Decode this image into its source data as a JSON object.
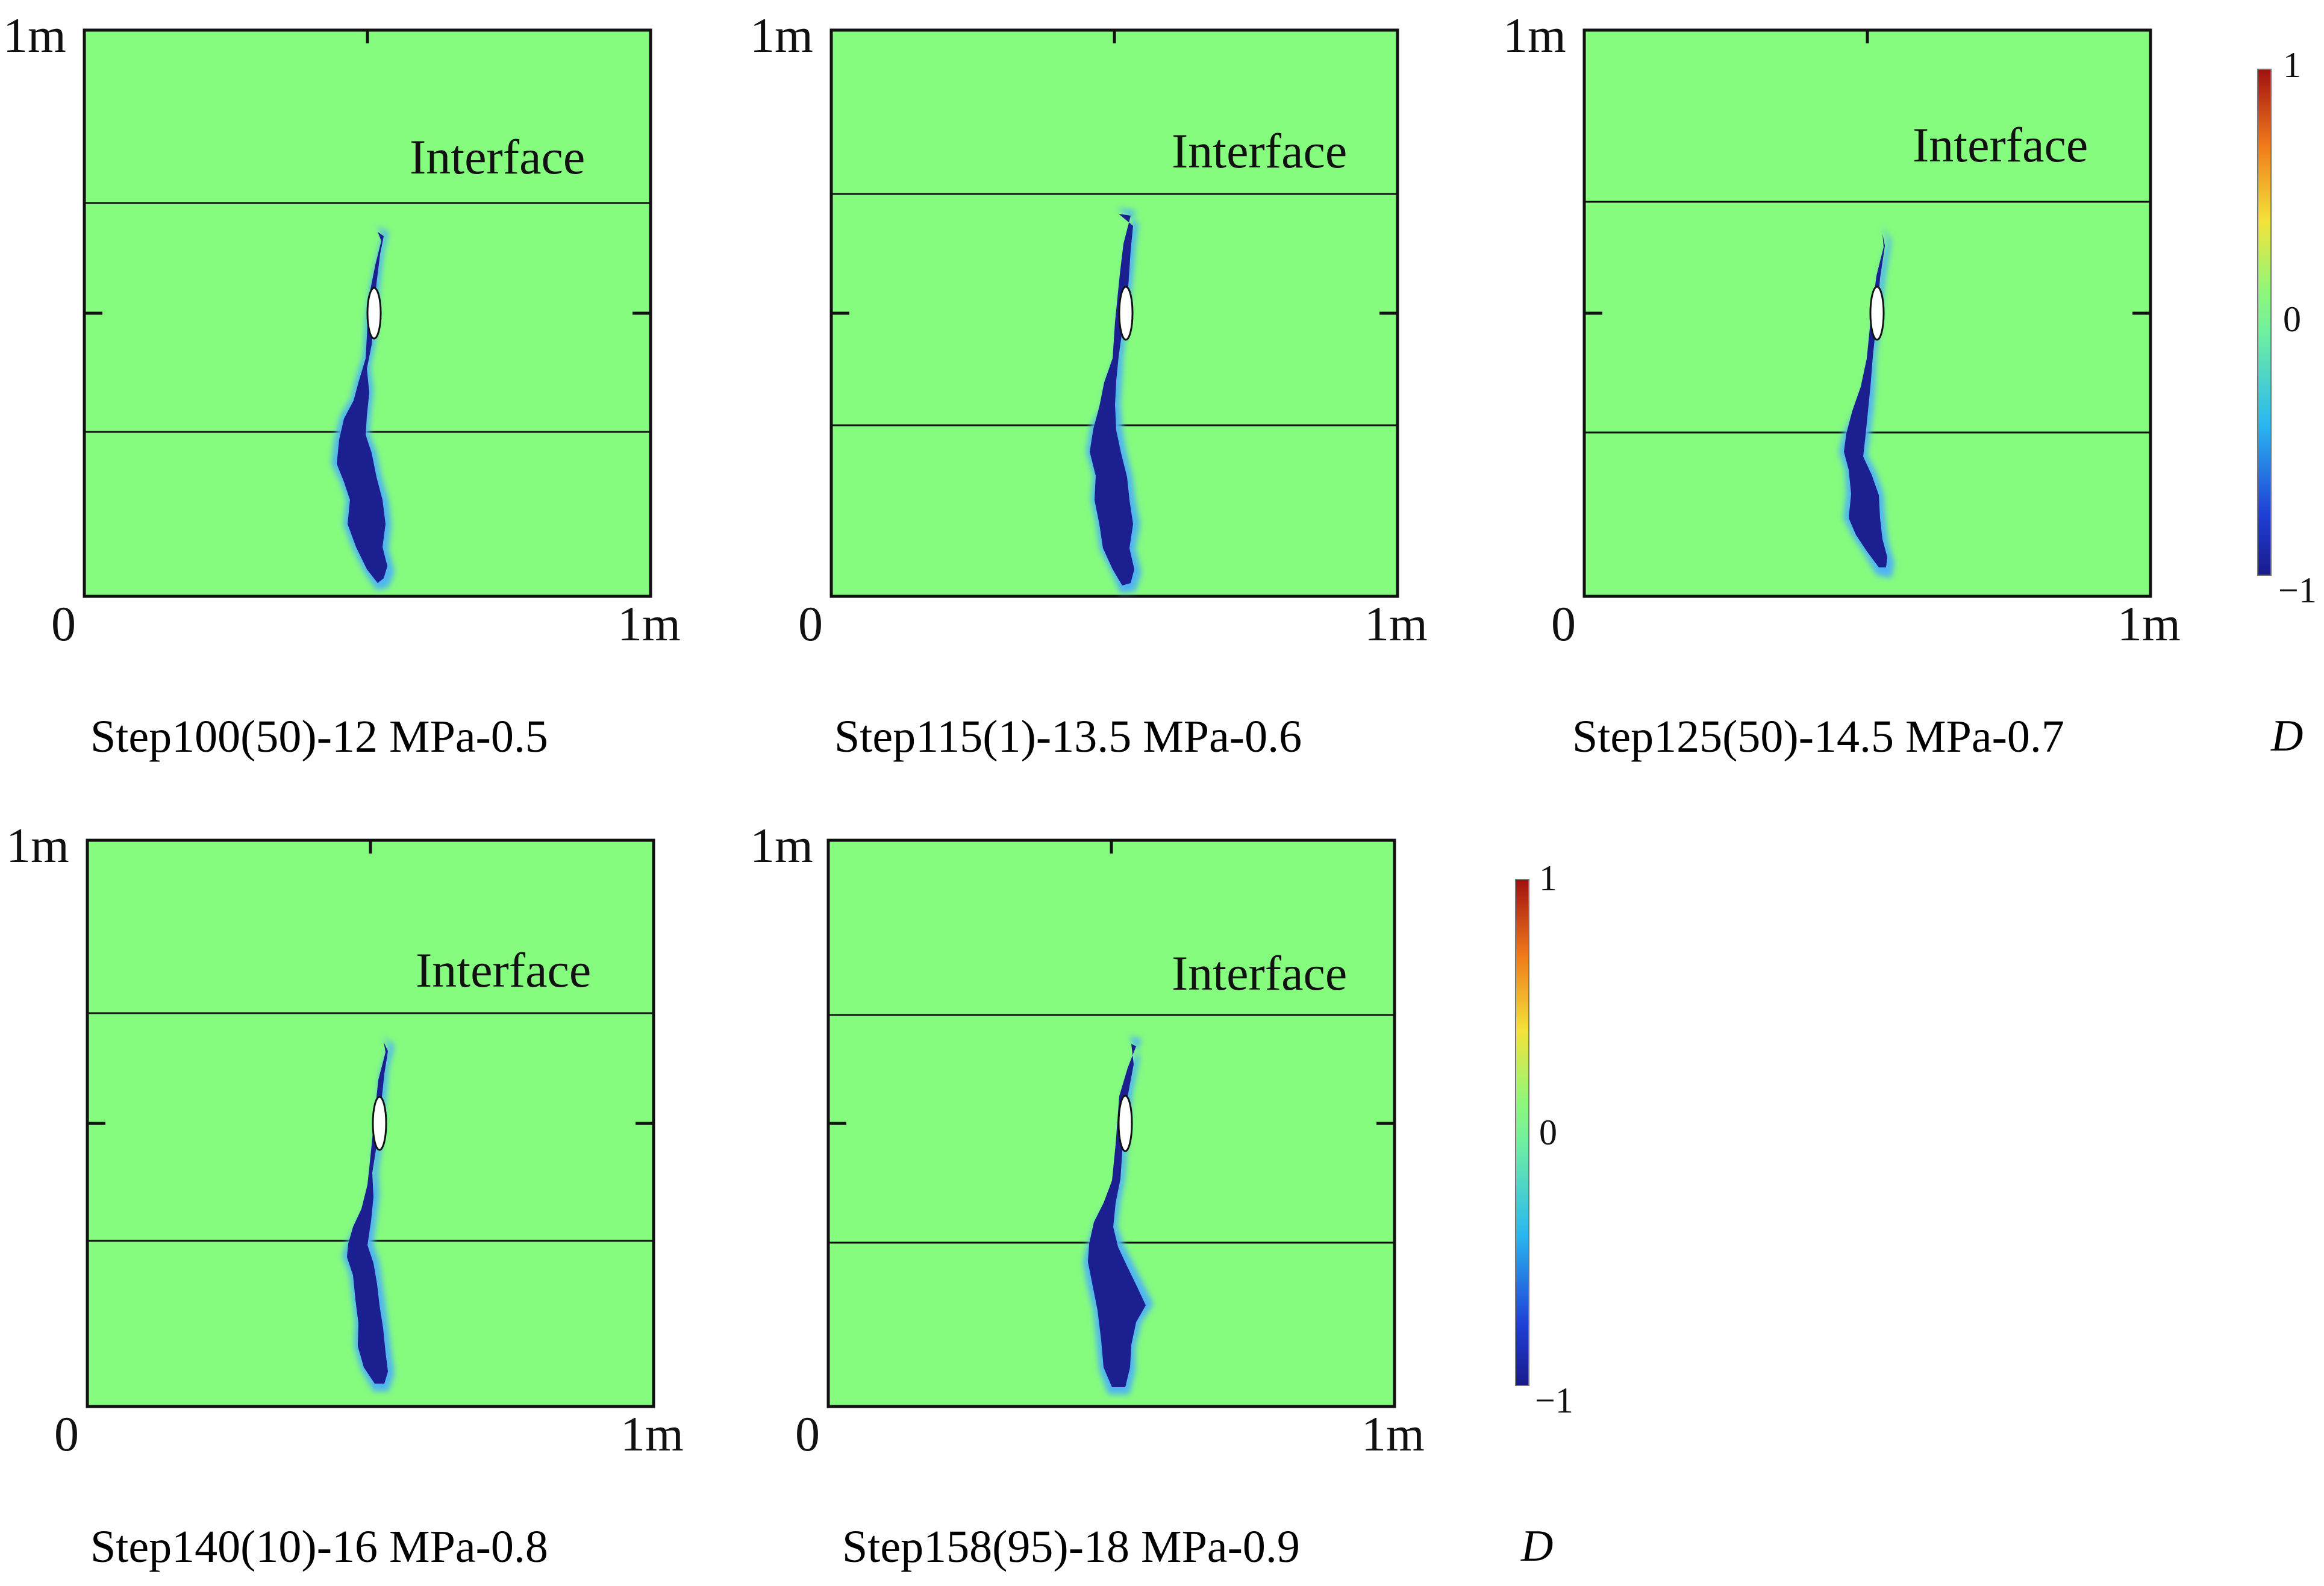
{
  "figure": {
    "axis_labels": {
      "top": "1m",
      "origin": "0",
      "right": "1m"
    },
    "interface_label": "Interface",
    "colors": {
      "background": "#86fc7e",
      "damage_dark": "#1b1f8f",
      "damage_mid": "#2d4ad8",
      "damage_edge": "#4fb4f2"
    }
  },
  "panels": [
    {
      "caption": "Step100(50)-12 MPa-0.5"
    },
    {
      "caption": "Step115(1)-13.5 MPa-0.6"
    },
    {
      "caption": "Step125(50)-14.5 MPa-0.7"
    },
    {
      "caption": "Step140(10)-16 MPa-0.8"
    },
    {
      "caption": "Step158(95)-18 MPa-0.9"
    }
  ],
  "colorbars": [
    {
      "max_label": "1",
      "mid_label": "0",
      "min_label": "−1",
      "variable": "D"
    },
    {
      "max_label": "1",
      "mid_label": "0",
      "min_label": "−1",
      "variable": "D"
    }
  ]
}
